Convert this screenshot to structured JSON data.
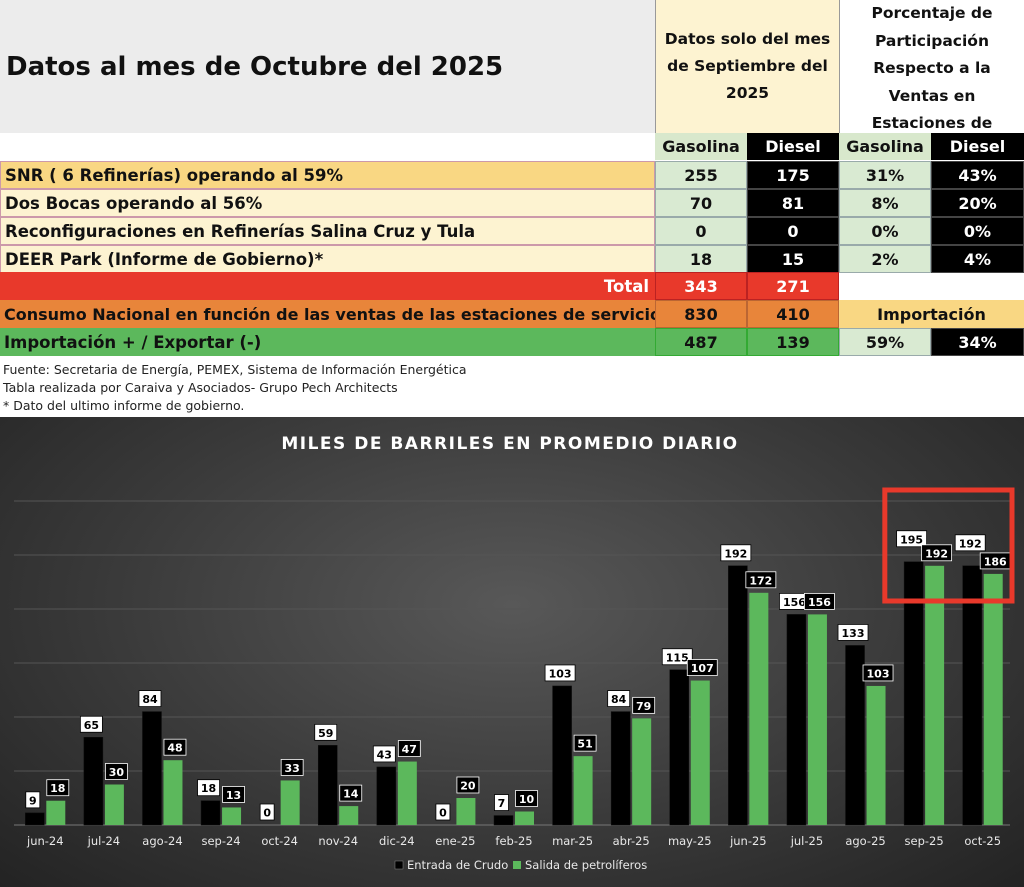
{
  "table": {
    "title": "Datos al mes de Octubre del 2025",
    "header_sep": "Datos solo del mes de Septiembre del 2025",
    "header_pct_lines": [
      "Porcentaje de",
      "Participación",
      "Respecto a la",
      "Ventas en",
      "Estaciones de"
    ],
    "sub_headers": [
      "Gasolina",
      "Diesel",
      "Gasolina",
      "Diesel"
    ],
    "rows": [
      {
        "label": "SNR ( 6 Refinerías) operando al 59%",
        "gas": "255",
        "diesel": "175",
        "gas_pct": "31%",
        "diesel_pct": "43%"
      },
      {
        "label": "Dos Bocas operando al 56%",
        "gas": "70",
        "diesel": "81",
        "gas_pct": "8%",
        "diesel_pct": "20%"
      },
      {
        "label": "Reconfiguraciones en Refinerías Salina Cruz y Tula",
        "gas": "0",
        "diesel": "0",
        "gas_pct": "0%",
        "diesel_pct": "0%"
      },
      {
        "label": "DEER Park (Informe de Gobierno)*",
        "gas": "18",
        "diesel": "15",
        "gas_pct": "2%",
        "diesel_pct": "4%"
      }
    ],
    "total": {
      "label": "Total",
      "gas": "343",
      "diesel": "271"
    },
    "consumo": {
      "label": "Consumo Nacional en función de las ventas de las estaciones de servicio",
      "gas": "830",
      "diesel": "410",
      "note": "Importación"
    },
    "importacion": {
      "label": "Importación + / Exportar (-)",
      "gas": "487",
      "diesel": "139",
      "gas_pct": "59%",
      "diesel_pct": "34%"
    },
    "sources": [
      "Fuente: Secretaria de Energía, PEMEX, Sistema de Información Energética",
      "Tabla realizada por Caraiva y Asociados- Grupo Pech Architects",
      "* Dato del ultimo informe de gobierno."
    ],
    "colors": {
      "yellow": "#f9d783",
      "cream": "#fdf3d1",
      "red": "#e8392b",
      "orange": "#e8853a",
      "green": "#5cb85c",
      "light_green": "#d9ead2",
      "black": "#000000"
    }
  },
  "chart_data": {
    "type": "bar",
    "title": "MILES DE BARRILES EN PROMEDIO DIARIO",
    "categories": [
      "jun-24",
      "jul-24",
      "ago-24",
      "sep-24",
      "oct-24",
      "nov-24",
      "dic-24",
      "ene-25",
      "feb-25",
      "mar-25",
      "abr-25",
      "may-25",
      "jun-25",
      "jul-25",
      "ago-25",
      "sep-25",
      "oct-25"
    ],
    "series": [
      {
        "name": "Entrada de Crudo",
        "color": "#000000",
        "values": [
          9,
          65,
          84,
          18,
          0,
          59,
          43,
          0,
          7,
          103,
          84,
          115,
          192,
          156,
          133,
          195,
          192
        ]
      },
      {
        "name": "Salida de petrolíferos",
        "color": "#5cb85c",
        "values": [
          18,
          30,
          48,
          13,
          33,
          14,
          47,
          20,
          10,
          51,
          79,
          107,
          172,
          156,
          103,
          192,
          186
        ]
      }
    ],
    "ylim": [
      0,
      240
    ],
    "grid": true,
    "legend": "bottom",
    "highlight": {
      "categories": [
        "sep-25",
        "oct-25"
      ],
      "color": "#e8392b"
    }
  }
}
